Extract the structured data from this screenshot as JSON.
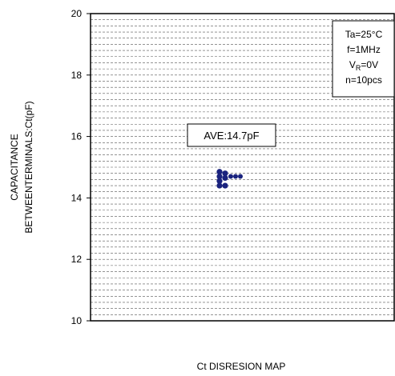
{
  "chart_data": {
    "type": "scatter",
    "title": "",
    "xlabel": "Ct DISRESION MAP",
    "ylabel_line1": "CAPACITANCE",
    "ylabel_line2": "BETWEENTERMINALS:Ct(pF)",
    "ylim": [
      10,
      20
    ],
    "yticks": [
      {
        "value": 20,
        "label": "20"
      },
      {
        "value": 18,
        "label": "18"
      },
      {
        "value": 16,
        "label": "16"
      },
      {
        "value": 14,
        "label": "14"
      },
      {
        "value": 12,
        "label": "12"
      },
      {
        "value": 10,
        "label": "10"
      }
    ],
    "minor_grid_step": 0.2,
    "grid": true,
    "grid_style": "dashed",
    "point_color": "#1a237e",
    "points": [
      {
        "col": 0,
        "y": 14.85
      },
      {
        "col": 0,
        "y": 14.7
      },
      {
        "col": 0,
        "y": 14.55
      },
      {
        "col": 0,
        "y": 14.4
      },
      {
        "col": 1,
        "y": 14.8
      },
      {
        "col": 1,
        "y": 14.65
      },
      {
        "col": 1,
        "y": 14.4
      },
      {
        "col": 2,
        "y": 14.7
      },
      {
        "col": 3,
        "y": 14.7
      },
      {
        "col": 4,
        "y": 14.7
      }
    ],
    "annotation": {
      "text": "AVE:14.7pF"
    },
    "conditions": {
      "ta": "Ta=25°C",
      "f": "f=1MHz",
      "vr_main": "V",
      "vr_sub": "R",
      "vr_rest": "=0V",
      "n": "n=10pcs"
    }
  }
}
